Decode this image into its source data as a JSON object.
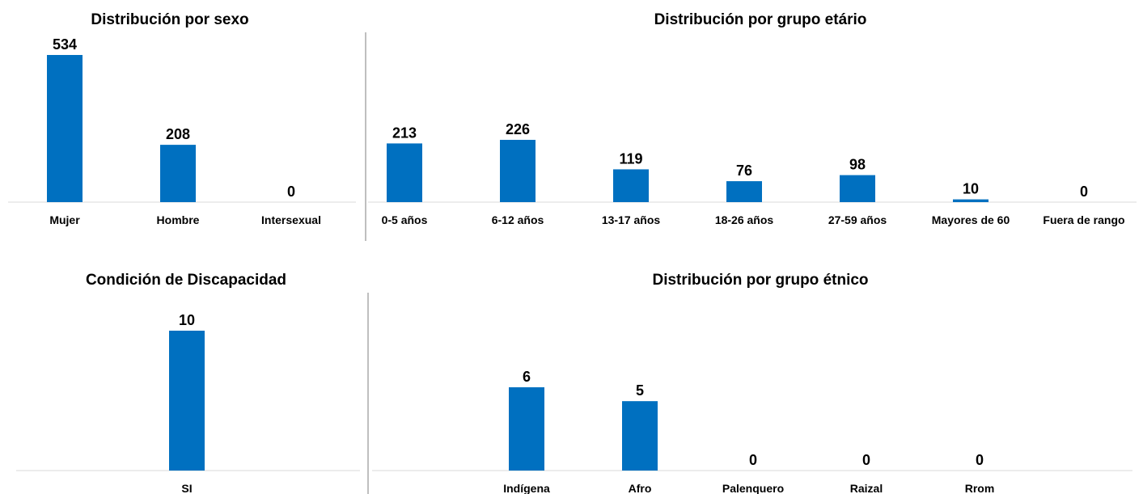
{
  "colors": {
    "bar": "#0070c0",
    "axis": "#d9d9d9",
    "divider": "#7f7f7f",
    "text": "#000000"
  },
  "chart_data": [
    {
      "type": "bar",
      "title": "Distribución por sexo",
      "categories": [
        "Mujer",
        "Hombre",
        "Intersexual"
      ],
      "values": [
        534,
        208,
        0
      ]
    },
    {
      "type": "bar",
      "title": "Distribución por grupo etário",
      "categories": [
        "0-5 años",
        "6-12 años",
        "13-17 años",
        "18-26 años",
        "27-59 años",
        "Mayores de 60",
        "Fuera de rango"
      ],
      "values": [
        213,
        226,
        119,
        76,
        98,
        10,
        0
      ]
    },
    {
      "type": "bar",
      "title": "Condición de Discapacidad",
      "categories": [
        "SI"
      ],
      "values": [
        10
      ]
    },
    {
      "type": "bar",
      "title": "Distribución por grupo étnico",
      "categories": [
        "Indígena",
        "Afro",
        "Palenquero",
        "Raizal",
        "Rrom"
      ],
      "values": [
        6,
        5,
        0,
        0,
        0
      ]
    }
  ]
}
